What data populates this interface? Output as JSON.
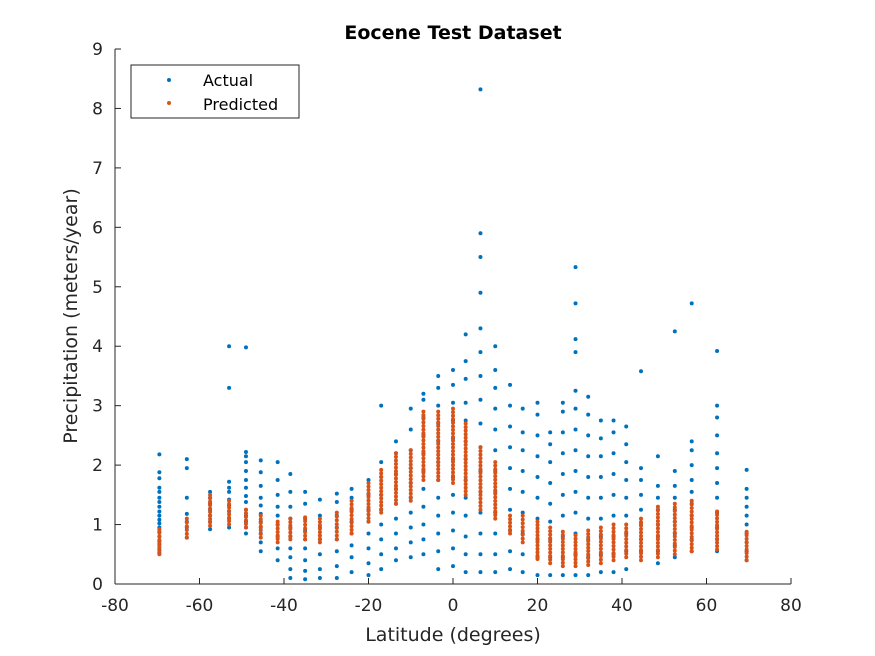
{
  "chart_data": {
    "type": "scatter",
    "title": "Eocene Test Dataset",
    "xlabel": "Latitude (degrees)",
    "ylabel": "Precipitation (meters/year)",
    "xlim": [
      -80,
      80
    ],
    "ylim": [
      0,
      9
    ],
    "xticks": [
      -80,
      -60,
      -40,
      -20,
      0,
      20,
      40,
      60,
      80
    ],
    "yticks": [
      0,
      1,
      2,
      3,
      4,
      5,
      6,
      7,
      8,
      9
    ],
    "legend_position": "top-left",
    "grid": false,
    "series": [
      {
        "name": "Actual",
        "color": "#0072BD",
        "columns": [
          {
            "x": -69.5,
            "values": [
              0.52,
              0.58,
              0.66,
              0.72,
              0.8,
              0.88,
              0.95,
              1.02,
              1.08,
              1.15,
              1.22,
              1.3,
              1.38,
              1.45,
              1.55,
              1.62,
              1.78,
              1.88,
              2.18
            ]
          },
          {
            "x": -63,
            "values": [
              0.78,
              0.95,
              1.05,
              1.18,
              1.45,
              1.95,
              2.1
            ]
          },
          {
            "x": -57.5,
            "values": [
              0.92,
              1.05,
              1.15,
              1.25,
              1.35,
              1.45,
              1.55
            ]
          },
          {
            "x": -53,
            "values": [
              0.95,
              1.1,
              1.22,
              1.32,
              1.42,
              1.55,
              1.62,
              1.72,
              3.3,
              4.0
            ]
          },
          {
            "x": -49,
            "values": [
              0.85,
              0.95,
              1.05,
              1.15,
              1.25,
              1.38,
              1.48,
              1.62,
              1.75,
              1.9,
              2.05,
              2.15,
              2.22,
              3.98
            ]
          },
          {
            "x": -45.5,
            "values": [
              0.55,
              0.7,
              0.85,
              0.95,
              1.05,
              1.18,
              1.32,
              1.45,
              1.65,
              1.88,
              2.08
            ]
          },
          {
            "x": -41.5,
            "values": [
              0.4,
              0.6,
              0.8,
              1.0,
              1.15,
              1.3,
              1.5,
              1.75,
              2.05
            ]
          },
          {
            "x": -38.5,
            "values": [
              0.1,
              0.25,
              0.45,
              0.6,
              0.8,
              0.95,
              1.1,
              1.3,
              1.55,
              1.85
            ]
          },
          {
            "x": -35,
            "values": [
              0.08,
              0.22,
              0.4,
              0.6,
              0.75,
              0.9,
              1.1,
              1.35,
              1.55
            ]
          },
          {
            "x": -31.5,
            "values": [
              0.1,
              0.25,
              0.5,
              0.75,
              0.95,
              1.15,
              1.42
            ]
          },
          {
            "x": -27.5,
            "values": [
              0.1,
              0.3,
              0.55,
              0.75,
              0.95,
              1.15,
              1.38,
              1.52
            ]
          },
          {
            "x": -24,
            "values": [
              0.2,
              0.45,
              0.65,
              0.85,
              1.05,
              1.25,
              1.45,
              1.6
            ]
          },
          {
            "x": -20,
            "values": [
              0.15,
              0.35,
              0.6,
              0.85,
              1.05,
              1.25,
              1.5,
              1.75
            ]
          },
          {
            "x": -17,
            "values": [
              0.25,
              0.5,
              0.75,
              1.0,
              1.25,
              1.5,
              1.8,
              2.05,
              3.0
            ]
          },
          {
            "x": -13.5,
            "values": [
              0.4,
              0.6,
              0.85,
              1.1,
              1.35,
              1.6,
              1.85,
              2.2,
              2.4
            ]
          },
          {
            "x": -10,
            "values": [
              0.45,
              0.7,
              0.95,
              1.2,
              1.45,
              1.7,
              1.95,
              2.25,
              2.6,
              2.95
            ]
          },
          {
            "x": -7,
            "values": [
              0.5,
              0.75,
              1.0,
              1.3,
              1.6,
              1.9,
              2.2,
              2.5,
              2.8,
              3.1,
              3.2
            ]
          },
          {
            "x": -3.5,
            "values": [
              0.25,
              0.55,
              0.85,
              1.15,
              1.45,
              1.75,
              2.05,
              2.4,
              2.7,
              3.0,
              3.3,
              3.5
            ]
          },
          {
            "x": 0,
            "values": [
              0.3,
              0.6,
              0.9,
              1.2,
              1.5,
              1.8,
              2.1,
              2.45,
              2.75,
              3.05,
              3.35,
              3.6
            ]
          },
          {
            "x": 3,
            "values": [
              0.2,
              0.5,
              0.8,
              1.15,
              1.45,
              1.75,
              2.1,
              2.4,
              2.75,
              3.05,
              3.45,
              3.75,
              4.2
            ]
          },
          {
            "x": 6.5,
            "values": [
              0.2,
              0.5,
              0.85,
              1.2,
              1.55,
              1.9,
              2.3,
              2.7,
              3.1,
              3.5,
              3.9,
              4.3,
              4.9,
              5.5,
              5.9,
              8.32
            ]
          },
          {
            "x": 10,
            "values": [
              0.2,
              0.5,
              0.85,
              1.2,
              1.55,
              1.9,
              2.25,
              2.6,
              2.95,
              3.3,
              3.6,
              4.0
            ]
          },
          {
            "x": 13.5,
            "values": [
              0.25,
              0.55,
              0.9,
              1.25,
              1.6,
              1.95,
              2.3,
              2.65,
              3.0,
              3.35
            ]
          },
          {
            "x": 16.5,
            "values": [
              0.2,
              0.5,
              0.85,
              1.2,
              1.55,
              1.9,
              2.25,
              2.55,
              2.95
            ]
          },
          {
            "x": 20,
            "values": [
              0.15,
              0.45,
              0.75,
              1.1,
              1.45,
              1.8,
              2.15,
              2.5,
              2.85,
              3.05
            ]
          },
          {
            "x": 23,
            "values": [
              0.15,
              0.45,
              0.75,
              1.05,
              1.35,
              1.7,
              2.05,
              2.35,
              2.55
            ]
          },
          {
            "x": 26,
            "values": [
              0.15,
              0.45,
              0.8,
              1.15,
              1.5,
              1.85,
              2.2,
              2.55,
              2.9,
              3.05
            ]
          },
          {
            "x": 29,
            "values": [
              0.15,
              0.5,
              0.85,
              1.2,
              1.55,
              1.9,
              2.25,
              2.6,
              2.95,
              3.25,
              3.9,
              4.12,
              4.72,
              5.33
            ]
          },
          {
            "x": 32,
            "values": [
              0.15,
              0.45,
              0.75,
              1.1,
              1.45,
              1.8,
              2.15,
              2.5,
              2.85,
              3.15
            ]
          },
          {
            "x": 35,
            "values": [
              0.2,
              0.5,
              0.8,
              1.1,
              1.45,
              1.8,
              2.15,
              2.45,
              2.75
            ]
          },
          {
            "x": 38,
            "values": [
              0.2,
              0.5,
              0.8,
              1.15,
              1.5,
              1.85,
              2.2,
              2.55,
              2.75
            ]
          },
          {
            "x": 41,
            "values": [
              0.25,
              0.55,
              0.85,
              1.15,
              1.45,
              1.75,
              2.05,
              2.35,
              2.65
            ]
          },
          {
            "x": 44.5,
            "values": [
              0.55,
              0.75,
              1.0,
              1.25,
              1.5,
              1.75,
              1.95,
              3.58
            ]
          },
          {
            "x": 48.5,
            "values": [
              0.35,
              0.55,
              0.8,
              1.0,
              1.25,
              1.45,
              1.65,
              2.15
            ]
          },
          {
            "x": 52.5,
            "values": [
              0.45,
              0.65,
              0.85,
              1.05,
              1.25,
              1.45,
              1.65,
              1.9,
              4.25
            ]
          },
          {
            "x": 56.5,
            "values": [
              0.55,
              0.75,
              0.95,
              1.15,
              1.35,
              1.55,
              1.75,
              2.0,
              2.25,
              2.4,
              4.72
            ]
          },
          {
            "x": 62.5,
            "values": [
              0.55,
              0.75,
              0.95,
              1.2,
              1.45,
              1.7,
              1.95,
              2.2,
              2.5,
              2.8,
              3.0,
              3.92
            ]
          },
          {
            "x": 69.5,
            "values": [
              0.4,
              0.55,
              0.7,
              0.85,
              1.0,
              1.15,
              1.3,
              1.45,
              1.6,
              1.92
            ]
          }
        ]
      },
      {
        "name": "Predicted",
        "color": "#D95319",
        "columns": [
          {
            "x": -69.5,
            "range": [
              0.5,
              0.92
            ]
          },
          {
            "x": -63,
            "range": [
              0.78,
              1.1
            ]
          },
          {
            "x": -57.5,
            "range": [
              0.98,
              1.5
            ]
          },
          {
            "x": -53,
            "range": [
              1.0,
              1.4
            ]
          },
          {
            "x": -49,
            "range": [
              0.95,
              1.25
            ]
          },
          {
            "x": -45.5,
            "range": [
              0.78,
              1.15
            ]
          },
          {
            "x": -41.5,
            "range": [
              0.7,
              1.05
            ]
          },
          {
            "x": -38.5,
            "range": [
              0.75,
              1.1
            ]
          },
          {
            "x": -35,
            "range": [
              0.75,
              1.12
            ]
          },
          {
            "x": -31.5,
            "range": [
              0.7,
              1.1
            ]
          },
          {
            "x": -27.5,
            "range": [
              0.75,
              1.2
            ]
          },
          {
            "x": -24,
            "range": [
              0.85,
              1.4
            ]
          },
          {
            "x": -20,
            "range": [
              1.05,
              1.7
            ]
          },
          {
            "x": -17,
            "range": [
              1.2,
              1.92
            ]
          },
          {
            "x": -13.5,
            "range": [
              1.35,
              2.2
            ]
          },
          {
            "x": -10,
            "range": [
              1.4,
              2.25
            ]
          },
          {
            "x": -7,
            "range": [
              1.75,
              2.9
            ]
          },
          {
            "x": -3.5,
            "range": [
              1.75,
              2.9
            ]
          },
          {
            "x": 0,
            "range": [
              1.7,
              2.95
            ]
          },
          {
            "x": 3,
            "range": [
              1.5,
              2.7
            ]
          },
          {
            "x": 6.5,
            "range": [
              1.25,
              2.3
            ]
          },
          {
            "x": 10,
            "range": [
              1.1,
              2.05
            ]
          },
          {
            "x": 13.5,
            "range": [
              0.85,
              1.15
            ]
          },
          {
            "x": 16.5,
            "range": [
              0.7,
              1.15
            ]
          },
          {
            "x": 20,
            "range": [
              0.42,
              1.05
            ]
          },
          {
            "x": 23,
            "range": [
              0.35,
              0.95
            ]
          },
          {
            "x": 26,
            "range": [
              0.3,
              0.88
            ]
          },
          {
            "x": 29,
            "range": [
              0.3,
              0.82
            ]
          },
          {
            "x": 32,
            "range": [
              0.32,
              0.9
            ]
          },
          {
            "x": 35,
            "range": [
              0.35,
              0.95
            ]
          },
          {
            "x": 38,
            "range": [
              0.4,
              1.0
            ]
          },
          {
            "x": 41,
            "range": [
              0.45,
              1.0
            ]
          },
          {
            "x": 44.5,
            "range": [
              0.4,
              1.1
            ]
          },
          {
            "x": 48.5,
            "range": [
              0.45,
              1.3
            ]
          },
          {
            "x": 52.5,
            "range": [
              0.5,
              1.35
            ]
          },
          {
            "x": 56.5,
            "range": [
              0.55,
              1.4
            ]
          },
          {
            "x": 62.5,
            "range": [
              0.58,
              1.22
            ]
          },
          {
            "x": 69.5,
            "range": [
              0.4,
              0.88
            ]
          }
        ]
      }
    ]
  }
}
